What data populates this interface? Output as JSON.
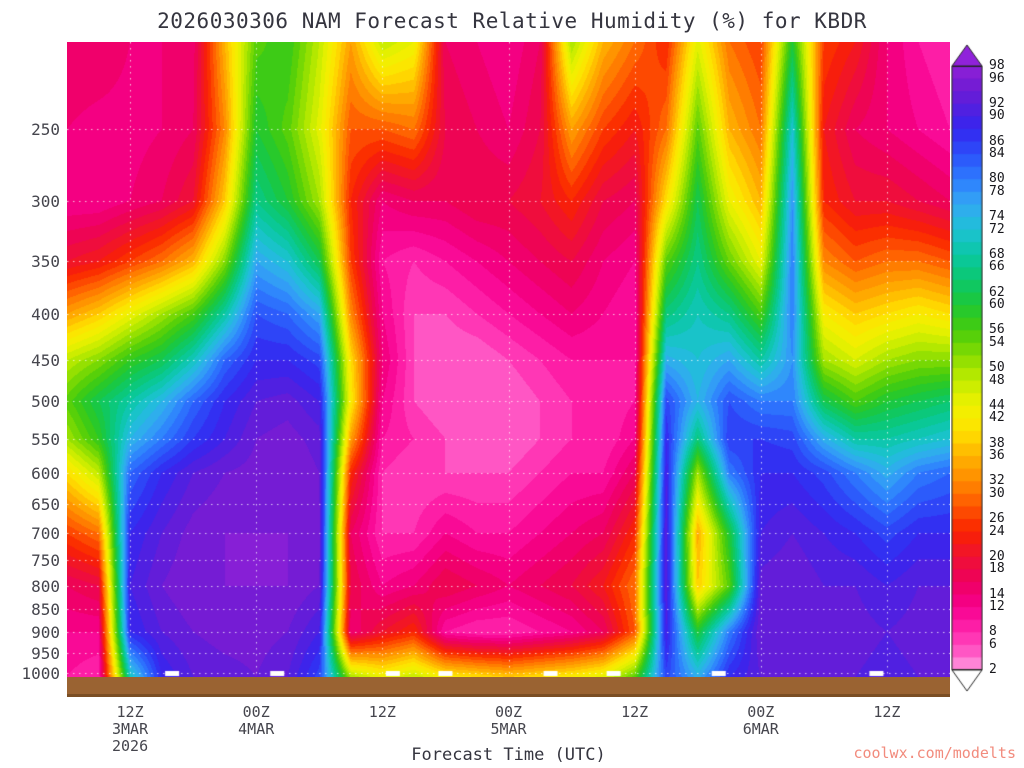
{
  "header": {
    "title": "2026030306 NAM Forecast Relative Humidity (%) for KBDR"
  },
  "watermark": {
    "text": "coolwx.com/modelts"
  },
  "colors": {
    "page_bg": "#ffffff",
    "title_text": "#35353f",
    "axis_text": "#45454d",
    "colorbar_text": "#17171c",
    "watermark_text": "#f28b7d",
    "surface_strip": "#9a6332",
    "surface_strip_edge": "#7a4e24",
    "grid_dots": "rgba(255,255,255,0.75)",
    "surface_marker": "#ffffff",
    "colorbar_border": "#222222"
  },
  "chart_data": {
    "type": "heatmap",
    "title": "2026030306 NAM Forecast Relative Humidity (%) for KBDR",
    "xlabel": "Forecast Time (UTC)",
    "ylabel": "",
    "units": "% relative humidity",
    "y_scale": "log-pressure",
    "y_top_hpa": 200,
    "y_bottom_hpa": 1010,
    "y_axis_labels": [
      250,
      300,
      350,
      400,
      450,
      500,
      550,
      600,
      650,
      700,
      750,
      800,
      850,
      900,
      950,
      1000
    ],
    "x_ticks": [
      {
        "hour": 6,
        "lines": [
          "12Z",
          "3MAR",
          "2026"
        ]
      },
      {
        "hour": 18,
        "lines": [
          "00Z",
          "4MAR"
        ]
      },
      {
        "hour": 30,
        "lines": [
          "12Z"
        ]
      },
      {
        "hour": 42,
        "lines": [
          "00Z",
          "5MAR"
        ]
      },
      {
        "hour": 54,
        "lines": [
          "12Z"
        ]
      },
      {
        "hour": 66,
        "lines": [
          "00Z",
          "6MAR"
        ]
      },
      {
        "hour": 78,
        "lines": [
          "12Z"
        ]
      }
    ],
    "x_hours": [
      0,
      3,
      6,
      9,
      12,
      15,
      18,
      21,
      24,
      27,
      30,
      33,
      36,
      39,
      42,
      45,
      48,
      51,
      54,
      57,
      60,
      63,
      66,
      69,
      72,
      75,
      78,
      81,
      84
    ],
    "y_levels_hpa": [
      200,
      250,
      300,
      350,
      400,
      450,
      500,
      550,
      600,
      700,
      800,
      900,
      1010
    ],
    "grid_columns": [
      [
        16,
        14,
        12,
        20,
        34,
        48,
        55,
        50,
        40,
        26,
        16,
        12,
        10
      ],
      [
        16,
        13,
        12,
        22,
        38,
        52,
        62,
        58,
        48,
        30,
        18,
        12,
        8
      ],
      [
        14,
        13,
        14,
        26,
        44,
        58,
        68,
        74,
        82,
        88,
        90,
        88,
        70
      ],
      [
        14,
        14,
        16,
        30,
        50,
        62,
        74,
        80,
        88,
        92,
        94,
        92,
        88
      ],
      [
        15,
        16,
        20,
        36,
        56,
        70,
        82,
        86,
        92,
        95,
        96,
        94,
        92
      ],
      [
        36,
        32,
        38,
        52,
        68,
        82,
        88,
        90,
        94,
        96,
        96,
        95,
        93
      ],
      [
        55,
        60,
        66,
        76,
        84,
        88,
        92,
        94,
        95,
        96,
        96,
        95,
        94
      ],
      [
        58,
        55,
        60,
        72,
        82,
        88,
        93,
        95,
        96,
        96,
        96,
        94,
        92
      ],
      [
        48,
        45,
        50,
        62,
        76,
        85,
        90,
        93,
        94,
        95,
        94,
        90,
        85
      ],
      [
        34,
        28,
        24,
        26,
        32,
        40,
        42,
        34,
        24,
        16,
        18,
        14,
        50
      ],
      [
        48,
        28,
        14,
        10,
        12,
        14,
        12,
        10,
        8,
        8,
        12,
        20,
        44
      ],
      [
        44,
        30,
        16,
        8,
        6,
        6,
        6,
        8,
        6,
        8,
        14,
        24,
        48
      ],
      [
        16,
        18,
        16,
        10,
        6,
        4,
        4,
        6,
        6,
        12,
        18,
        10,
        42
      ],
      [
        14,
        16,
        18,
        12,
        8,
        4,
        4,
        4,
        6,
        10,
        16,
        8,
        40
      ],
      [
        12,
        14,
        18,
        14,
        10,
        6,
        4,
        4,
        6,
        10,
        14,
        8,
        38
      ],
      [
        16,
        18,
        20,
        16,
        12,
        8,
        6,
        6,
        8,
        12,
        16,
        10,
        40
      ],
      [
        50,
        34,
        24,
        18,
        14,
        10,
        8,
        8,
        10,
        14,
        18,
        12,
        42
      ],
      [
        36,
        26,
        18,
        14,
        12,
        10,
        8,
        8,
        10,
        16,
        22,
        16,
        45
      ],
      [
        30,
        22,
        16,
        12,
        10,
        10,
        10,
        12,
        16,
        24,
        30,
        28,
        55
      ],
      [
        24,
        30,
        40,
        55,
        65,
        75,
        85,
        88,
        90,
        92,
        92,
        90,
        85
      ],
      [
        45,
        55,
        62,
        66,
        70,
        72,
        74,
        65,
        50,
        35,
        38,
        60,
        75
      ],
      [
        30,
        36,
        44,
        54,
        66,
        76,
        84,
        86,
        80,
        60,
        55,
        80,
        88
      ],
      [
        26,
        30,
        36,
        44,
        56,
        68,
        80,
        86,
        88,
        90,
        93,
        94,
        92
      ],
      [
        60,
        72,
        78,
        80,
        80,
        78,
        80,
        85,
        88,
        92,
        94,
        94,
        92
      ],
      [
        26,
        22,
        24,
        32,
        42,
        50,
        62,
        75,
        85,
        90,
        92,
        93,
        92
      ],
      [
        22,
        16,
        20,
        28,
        38,
        46,
        56,
        68,
        80,
        88,
        92,
        93,
        92
      ],
      [
        14,
        14,
        20,
        30,
        40,
        50,
        60,
        68,
        75,
        85,
        90,
        92,
        91
      ],
      [
        10,
        12,
        18,
        30,
        42,
        52,
        62,
        70,
        80,
        88,
        92,
        93,
        92
      ],
      [
        8,
        10,
        16,
        28,
        40,
        52,
        64,
        72,
        82,
        88,
        92,
        93,
        92
      ]
    ],
    "colorbar": {
      "min": 2,
      "max": 98,
      "step": 2,
      "labels": [
        98,
        96,
        92,
        90,
        86,
        84,
        80,
        78,
        74,
        72,
        68,
        66,
        62,
        60,
        56,
        54,
        50,
        48,
        44,
        42,
        38,
        36,
        32,
        30,
        26,
        24,
        20,
        18,
        14,
        12,
        8,
        6,
        2
      ],
      "bottom_arrow_color": "#ffffff",
      "palette_stops": [
        [
          2,
          "#ffa2e2"
        ],
        [
          4,
          "#ff66cc"
        ],
        [
          8,
          "#ff28ae"
        ],
        [
          12,
          "#f7008e"
        ],
        [
          16,
          "#ee0060"
        ],
        [
          20,
          "#f01232"
        ],
        [
          24,
          "#fa2200"
        ],
        [
          28,
          "#ff5602"
        ],
        [
          32,
          "#ff8a00"
        ],
        [
          36,
          "#ffb400"
        ],
        [
          40,
          "#ffe200"
        ],
        [
          44,
          "#f0f200"
        ],
        [
          48,
          "#c2ec00"
        ],
        [
          52,
          "#86dc02"
        ],
        [
          56,
          "#48cc0c"
        ],
        [
          60,
          "#1ec836"
        ],
        [
          64,
          "#0cc86e"
        ],
        [
          68,
          "#0ac8a4"
        ],
        [
          72,
          "#1ec2d6"
        ],
        [
          76,
          "#34a8f4"
        ],
        [
          80,
          "#2e7cff"
        ],
        [
          84,
          "#2c50fa"
        ],
        [
          88,
          "#3426f0"
        ],
        [
          92,
          "#5a1edc"
        ],
        [
          96,
          "#7e1cd2"
        ],
        [
          98,
          "#9022da"
        ]
      ]
    },
    "surface_markers": {
      "hours": [
        10,
        20,
        31,
        36,
        46,
        52,
        62,
        77
      ]
    },
    "grid_lines": {
      "horizontal_at_hpa": [
        250,
        300,
        350,
        400,
        450,
        500,
        550,
        600,
        650,
        700,
        750,
        800,
        850,
        900,
        950,
        1000
      ],
      "vertical_at_hours": [
        6,
        18,
        30,
        42,
        54,
        66,
        78
      ],
      "style": "dotted"
    }
  }
}
